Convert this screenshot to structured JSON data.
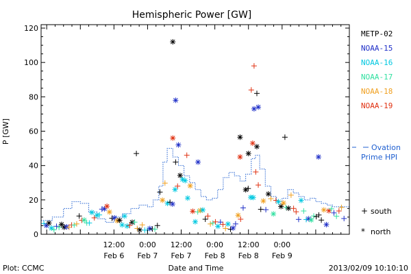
{
  "chart_data": {
    "type": "scatter",
    "title": "Hemispheric Power [GW]",
    "ylabel": "P [GW]",
    "xlabel": "Date and Time",
    "ylim": [
      0,
      122
    ],
    "yticks": [
      0,
      20,
      40,
      60,
      80,
      100,
      120
    ],
    "xlim_hours": [
      -14,
      96
    ],
    "x_start_note": "2013-02-06 00:00",
    "xticks": [
      {
        "hour": 12,
        "time": "12:00",
        "date": "Feb 6"
      },
      {
        "hour": 24,
        "time": "0:00",
        "date": "Feb 7"
      },
      {
        "hour": 36,
        "time": "12:00",
        "date": "Feb 7"
      },
      {
        "hour": 48,
        "time": "0:00",
        "date": "Feb 8"
      },
      {
        "hour": 60,
        "time": "12:00",
        "date": "Feb 8"
      },
      {
        "hour": 72,
        "time": "0:00",
        "date": "Feb 9"
      }
    ],
    "legend_position": "right",
    "series": [
      {
        "name": "METP-02",
        "color": "#000000"
      },
      {
        "name": "NOAA-15",
        "color": "#1f2fc8"
      },
      {
        "name": "NOAA-16",
        "color": "#00c8e0"
      },
      {
        "name": "NOAA-17",
        "color": "#30e0a0"
      },
      {
        "name": "NOAA-18",
        "color": "#f0a020"
      },
      {
        "name": "NOAA-19",
        "color": "#e03010"
      }
    ],
    "ovation": {
      "label_line1": "Ovation",
      "label_line2": "Prime HPI",
      "color": "#1f5fd0"
    },
    "marker_legend": {
      "south_symbol": "+",
      "south_label": "south",
      "north_symbol": "*",
      "north_label": "north"
    },
    "notable_points": [
      {
        "series": "METP-02",
        "hour": 33,
        "value": 112,
        "marker": "north"
      },
      {
        "series": "NOAA-15",
        "hour": 34,
        "value": 78,
        "marker": "north"
      },
      {
        "series": "NOAA-19",
        "hour": 62,
        "value": 98,
        "marker": "south"
      },
      {
        "series": "NOAA-19",
        "hour": 61,
        "value": 84,
        "marker": "south"
      },
      {
        "series": "METP-02",
        "hour": 63,
        "value": 82,
        "marker": "south"
      },
      {
        "series": "NOAA-15",
        "hour": 63.5,
        "value": 74,
        "marker": "north"
      },
      {
        "series": "NOAA-15",
        "hour": 62,
        "value": 73,
        "marker": "north"
      },
      {
        "series": "METP-02",
        "hour": 57,
        "value": 56.5,
        "marker": "north"
      },
      {
        "series": "NOAA-19",
        "hour": 33,
        "value": 56,
        "marker": "north"
      },
      {
        "series": "METP-02",
        "hour": 73,
        "value": 56.5,
        "marker": "south"
      },
      {
        "series": "NOAA-19",
        "hour": 61.5,
        "value": 53,
        "marker": "north"
      },
      {
        "series": "NOAA-15",
        "hour": 35,
        "value": 52,
        "marker": "north"
      },
      {
        "series": "METP-02",
        "hour": 63,
        "value": 51,
        "marker": "north"
      },
      {
        "series": "METP-02",
        "hour": 20,
        "value": 47,
        "marker": "south"
      },
      {
        "series": "METP-02",
        "hour": 60,
        "value": 47,
        "marker": "north"
      },
      {
        "series": "NOAA-19",
        "hour": 38,
        "value": 46,
        "marker": "south"
      },
      {
        "series": "NOAA-15",
        "hour": 85,
        "value": 45,
        "marker": "north"
      },
      {
        "series": "NOAA-19",
        "hour": 57,
        "value": 45,
        "marker": "north"
      },
      {
        "series": "NOAA-15",
        "hour": 42,
        "value": 42,
        "marker": "north"
      },
      {
        "series": "METP-02",
        "hour": 34,
        "value": 42,
        "marker": "south"
      }
    ]
  },
  "footer": {
    "plot_source": "Plot: CCMC",
    "timestamp": "2013/02/09 10:10:10"
  }
}
